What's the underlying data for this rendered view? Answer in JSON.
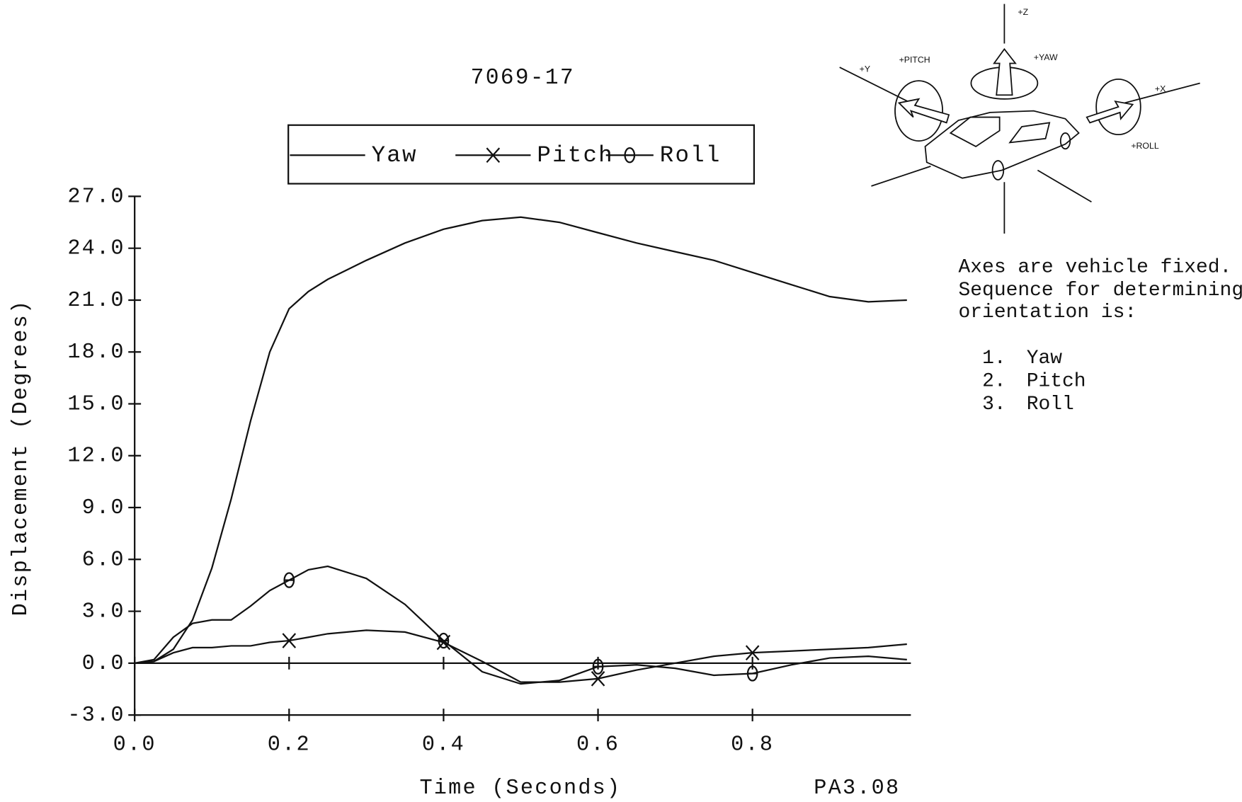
{
  "chart_data": {
    "type": "line",
    "title": "7069-17",
    "x_label": "Time (Seconds)",
    "y_label": "Displacement (Degrees)",
    "annotation": "PA3.08",
    "x": [
      0,
      0.025,
      0.05,
      0.075,
      0.1,
      0.125,
      0.15,
      0.175,
      0.2,
      0.225,
      0.25,
      0.3,
      0.35,
      0.4,
      0.45,
      0.5,
      0.55,
      0.6,
      0.65,
      0.7,
      0.75,
      0.8,
      0.85,
      0.9,
      0.95,
      1.0
    ],
    "series": [
      {
        "name": "Yaw",
        "color": "#111111",
        "marker": "none",
        "values": [
          0,
          0.1,
          0.8,
          2.5,
          5.5,
          9.5,
          14,
          18,
          20.5,
          21.5,
          22.2,
          23.3,
          24.3,
          25.1,
          25.6,
          25.8,
          25.5,
          24.9,
          24.3,
          23.8,
          23.3,
          22.6,
          21.9,
          21.2,
          20.9,
          21.0
        ]
      },
      {
        "name": "Pitch",
        "color": "#111111",
        "marker": "x",
        "values": [
          0,
          0.1,
          0.6,
          0.9,
          0.9,
          1.0,
          1.0,
          1.2,
          1.3,
          1.5,
          1.7,
          1.9,
          1.8,
          1.2,
          0.1,
          -1.1,
          -1.1,
          -0.9,
          -0.4,
          0,
          0.4,
          0.6,
          0.7,
          0.8,
          0.9,
          1.1
        ]
      },
      {
        "name": "Roll",
        "color": "#111111",
        "marker": "o",
        "values": [
          0,
          0.2,
          1.5,
          2.3,
          2.5,
          2.5,
          3.3,
          4.2,
          4.8,
          5.4,
          5.6,
          4.9,
          3.4,
          1.3,
          -0.5,
          -1.2,
          -1.0,
          -0.2,
          -0.1,
          -0.3,
          -0.7,
          -0.6,
          -0.1,
          0.3,
          0.4,
          0.2
        ]
      }
    ],
    "xlim": [
      0,
      1.0
    ],
    "ylim": [
      -3,
      27
    ],
    "xticks": [
      {
        "value": 0,
        "label": "0.0"
      },
      {
        "value": 0.2,
        "label": "0.2"
      },
      {
        "value": 0.4,
        "label": "0.4"
      },
      {
        "value": 0.6,
        "label": "0.6"
      },
      {
        "value": 0.8,
        "label": "0.8"
      }
    ],
    "yticks": [
      {
        "value": -3,
        "label": "-3.0"
      },
      {
        "value": 0,
        "label": "0.0"
      },
      {
        "value": 3,
        "label": "3.0"
      },
      {
        "value": 6,
        "label": "6.0"
      },
      {
        "value": 9,
        "label": "9.0"
      },
      {
        "value": 12,
        "label": "12.0"
      },
      {
        "value": 15,
        "label": "15.0"
      },
      {
        "value": 18,
        "label": "18.0"
      },
      {
        "value": 21,
        "label": "21.0"
      },
      {
        "value": 24,
        "label": "24.0"
      },
      {
        "value": 27,
        "label": "27.0"
      }
    ],
    "grid": false,
    "legend": "top"
  },
  "notes": {
    "lines": [
      "Axes are vehicle fixed.",
      "Sequence for determining",
      "orientation is:"
    ],
    "list": [
      {
        "num": "1.",
        "text": "Yaw"
      },
      {
        "num": "2.",
        "text": "Pitch"
      },
      {
        "num": "3.",
        "text": "Roll"
      }
    ]
  },
  "diagram": {
    "labels": [
      "+Z",
      "+YAW",
      "+PITCH",
      "+Y",
      "+X",
      "+ROLL"
    ]
  }
}
